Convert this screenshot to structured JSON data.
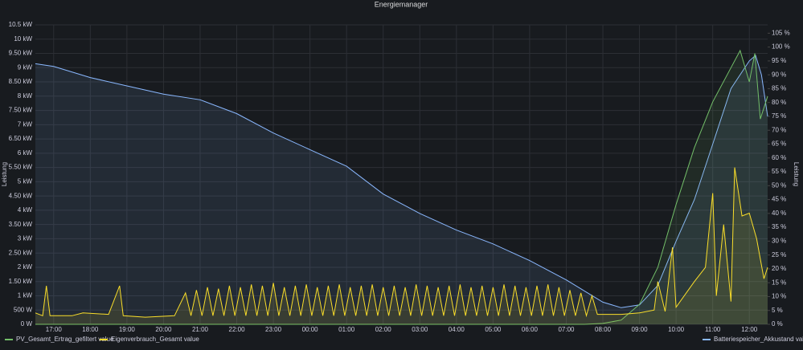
{
  "chart_data": {
    "type": "line",
    "title": "Energiemanager",
    "y_label": "Leistung",
    "y2_label": "Leistung",
    "xlim": [
      16.5,
      36.5
    ],
    "xticks": [
      {
        "value": 17,
        "label": "17:00"
      },
      {
        "value": 18,
        "label": "18:00"
      },
      {
        "value": 19,
        "label": "19:00"
      },
      {
        "value": 20,
        "label": "20:00"
      },
      {
        "value": 21,
        "label": "21:00"
      },
      {
        "value": 22,
        "label": "22:00"
      },
      {
        "value": 23,
        "label": "23:00"
      },
      {
        "value": 24,
        "label": "00:00"
      },
      {
        "value": 25,
        "label": "01:00"
      },
      {
        "value": 26,
        "label": "02:00"
      },
      {
        "value": 27,
        "label": "03:00"
      },
      {
        "value": 28,
        "label": "04:00"
      },
      {
        "value": 29,
        "label": "05:00"
      },
      {
        "value": 30,
        "label": "06:00"
      },
      {
        "value": 31,
        "label": "07:00"
      },
      {
        "value": 32,
        "label": "08:00"
      },
      {
        "value": 33,
        "label": "09:00"
      },
      {
        "value": 34,
        "label": "10:00"
      },
      {
        "value": 35,
        "label": "11:00"
      },
      {
        "value": 36,
        "label": "12:00"
      }
    ],
    "ylim": [
      0,
      10500
    ],
    "yticks": [
      {
        "value": 0,
        "label": "0 W"
      },
      {
        "value": 500,
        "label": "500 W"
      },
      {
        "value": 1000,
        "label": "1 kW"
      },
      {
        "value": 1500,
        "label": "1.50 kW"
      },
      {
        "value": 2000,
        "label": "2 kW"
      },
      {
        "value": 2500,
        "label": "2.50 kW"
      },
      {
        "value": 3000,
        "label": "3 kW"
      },
      {
        "value": 3500,
        "label": "3.50 kW"
      },
      {
        "value": 4000,
        "label": "4 kW"
      },
      {
        "value": 4500,
        "label": "4.50 kW"
      },
      {
        "value": 5000,
        "label": "5 kW"
      },
      {
        "value": 5500,
        "label": "5.50 kW"
      },
      {
        "value": 6000,
        "label": "6 kW"
      },
      {
        "value": 6500,
        "label": "6.50 kW"
      },
      {
        "value": 7000,
        "label": "7 kW"
      },
      {
        "value": 7500,
        "label": "7.50 kW"
      },
      {
        "value": 8000,
        "label": "8 kW"
      },
      {
        "value": 8500,
        "label": "8.50 kW"
      },
      {
        "value": 9000,
        "label": "9 kW"
      },
      {
        "value": 9500,
        "label": "9.50 kW"
      },
      {
        "value": 10000,
        "label": "10 kW"
      },
      {
        "value": 10500,
        "label": "10.5 kW"
      }
    ],
    "y2lim": [
      0,
      108
    ],
    "y2ticks": [
      {
        "value": 0,
        "label": "0 %"
      },
      {
        "value": 5,
        "label": "5 %"
      },
      {
        "value": 10,
        "label": "10 %"
      },
      {
        "value": 15,
        "label": "15 %"
      },
      {
        "value": 20,
        "label": "20 %"
      },
      {
        "value": 25,
        "label": "25 %"
      },
      {
        "value": 30,
        "label": "30 %"
      },
      {
        "value": 35,
        "label": "35 %"
      },
      {
        "value": 40,
        "label": "40 %"
      },
      {
        "value": 45,
        "label": "45 %"
      },
      {
        "value": 50,
        "label": "50 %"
      },
      {
        "value": 55,
        "label": "55 %"
      },
      {
        "value": 60,
        "label": "60 %"
      },
      {
        "value": 65,
        "label": "65 %"
      },
      {
        "value": 70,
        "label": "70 %"
      },
      {
        "value": 75,
        "label": "75 %"
      },
      {
        "value": 80,
        "label": "80 %"
      },
      {
        "value": 85,
        "label": "85 %"
      },
      {
        "value": 90,
        "label": "90 %"
      },
      {
        "value": 95,
        "label": "95 %"
      },
      {
        "value": 100,
        "label": "100 %"
      },
      {
        "value": 105,
        "label": "105 %"
      }
    ],
    "grid": true,
    "series": [
      {
        "name": "PV_Gesamt_Ertrag_gefiltert value",
        "color": "#73bf69",
        "axis": "y",
        "x": [
          16.5,
          31.5,
          32.0,
          32.5,
          33.0,
          33.5,
          34.0,
          34.5,
          35.0,
          35.5,
          35.75,
          36.0,
          36.15,
          36.3,
          36.5
        ],
        "values": [
          0,
          0,
          30,
          150,
          700,
          2000,
          4200,
          6200,
          7800,
          9000,
          9600,
          8500,
          9500,
          7200,
          8000
        ]
      },
      {
        "name": "Eigenverbrauch_Gesamt value",
        "color": "#fade2a",
        "axis": "y",
        "x": [
          16.5,
          16.7,
          16.8,
          16.9,
          17.5,
          17.8,
          18.5,
          18.8,
          18.9,
          19.5,
          20.3,
          20.6,
          20.75,
          20.9,
          21.05,
          21.2,
          21.35,
          21.5,
          21.65,
          21.8,
          21.95,
          22.1,
          22.25,
          22.4,
          22.55,
          22.7,
          22.85,
          23.0,
          23.15,
          23.3,
          23.45,
          23.6,
          23.75,
          23.9,
          24.05,
          24.2,
          24.35,
          24.5,
          24.65,
          24.8,
          24.95,
          25.1,
          25.25,
          25.4,
          25.55,
          25.7,
          25.85,
          26.0,
          26.15,
          26.3,
          26.45,
          26.6,
          26.75,
          26.9,
          27.05,
          27.2,
          27.35,
          27.5,
          27.65,
          27.8,
          27.95,
          28.1,
          28.25,
          28.4,
          28.55,
          28.7,
          28.85,
          29.0,
          29.15,
          29.3,
          29.45,
          29.6,
          29.75,
          29.9,
          30.05,
          30.2,
          30.35,
          30.5,
          30.65,
          30.8,
          30.95,
          31.1,
          31.25,
          31.4,
          31.55,
          31.7,
          31.85,
          32.5,
          33.0,
          33.4,
          33.5,
          33.7,
          33.9,
          34.0,
          34.5,
          34.8,
          35.0,
          35.1,
          35.3,
          35.5,
          35.6,
          35.8,
          36.0,
          36.2,
          36.4,
          36.5
        ],
        "values": [
          400,
          300,
          1350,
          300,
          300,
          400,
          350,
          1350,
          300,
          250,
          300,
          1100,
          300,
          1200,
          300,
          1300,
          300,
          1250,
          300,
          1350,
          300,
          1300,
          300,
          1400,
          300,
          1350,
          300,
          1450,
          300,
          1300,
          300,
          1350,
          300,
          1400,
          300,
          1300,
          300,
          1350,
          300,
          1400,
          300,
          1300,
          300,
          1350,
          300,
          1400,
          300,
          1300,
          300,
          1350,
          300,
          1300,
          300,
          1400,
          300,
          1350,
          300,
          1300,
          300,
          1350,
          300,
          1400,
          300,
          1300,
          300,
          1350,
          300,
          1300,
          300,
          1400,
          300,
          1350,
          300,
          1300,
          300,
          1350,
          300,
          1400,
          300,
          1300,
          300,
          1200,
          300,
          1100,
          300,
          1000,
          350,
          350,
          400,
          500,
          1500,
          450,
          2700,
          600,
          1500,
          2000,
          4600,
          1000,
          3500,
          800,
          5500,
          3800,
          3900,
          3000,
          1600,
          2000
        ]
      },
      {
        "name": "Batteriespeicher_Akkustand value",
        "color": "#8ab8ff",
        "axis": "y2",
        "x": [
          16.5,
          17,
          18,
          19,
          20,
          21,
          22,
          23,
          24,
          25,
          26,
          27,
          28,
          29,
          30,
          31,
          32,
          32.5,
          33,
          33.5,
          34,
          34.5,
          35,
          35.5,
          36,
          36.17,
          36.33,
          36.5
        ],
        "values": [
          94,
          93,
          89,
          86,
          83,
          81,
          76,
          69,
          63,
          57,
          47,
          40,
          34,
          29,
          23,
          16,
          8,
          6,
          7,
          14,
          30,
          45,
          65,
          85,
          95,
          97,
          90,
          75
        ]
      }
    ]
  }
}
